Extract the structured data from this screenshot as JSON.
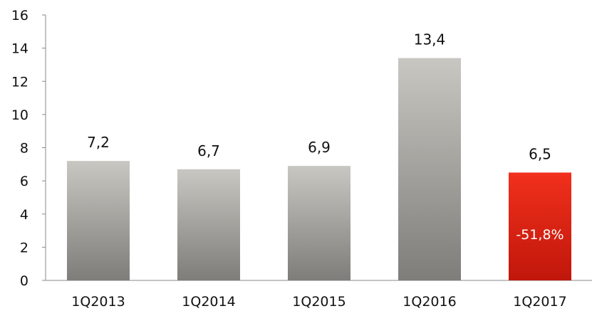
{
  "chart_data": {
    "type": "bar",
    "categories": [
      "1Q2013",
      "1Q2014",
      "1Q2015",
      "1Q2016",
      "1Q2017"
    ],
    "values": [
      7.2,
      6.7,
      6.9,
      13.4,
      6.5
    ],
    "data_labels": [
      "7,2",
      "6,7",
      "6,9",
      "13,4",
      "6,5"
    ],
    "y_ticks": [
      0,
      2,
      4,
      6,
      8,
      10,
      12,
      14,
      16
    ],
    "ylim": [
      0,
      16
    ],
    "grid": false,
    "legend": "none",
    "title": "",
    "xlabel": "",
    "ylabel": "",
    "highlight": {
      "category": "1Q2017",
      "annotation": "-51,8%"
    },
    "colors": {
      "bar_top": "#c8c7c2",
      "bar_bottom": "#7e7d79",
      "highlight_top": "#f1301c",
      "highlight_bottom": "#c0170b",
      "axis": "#888888"
    }
  }
}
